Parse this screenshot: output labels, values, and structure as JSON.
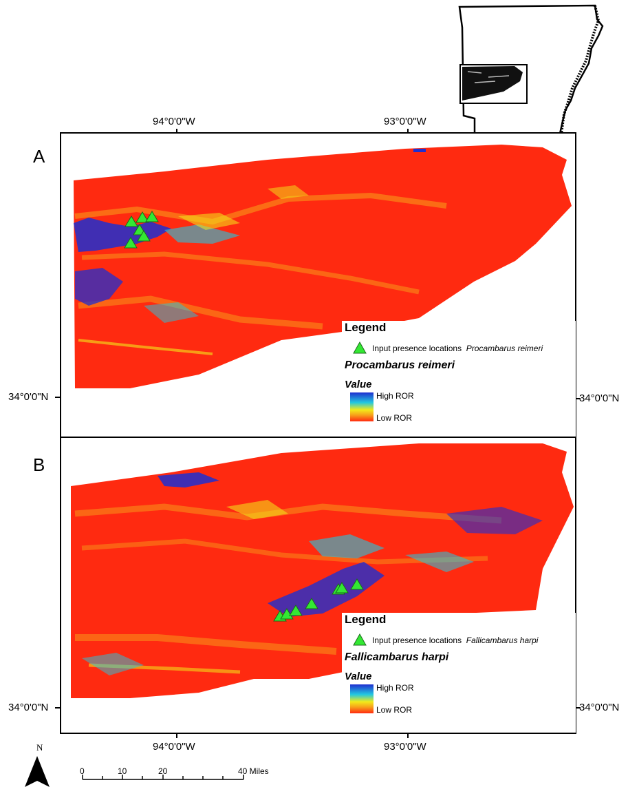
{
  "panels": [
    {
      "letter": "A",
      "lon_labels_top": [
        "94°0'0\"W",
        "93°0'0\"W"
      ],
      "lat_label_left": "34°0'0\"N",
      "lat_label_right": "34°0'0\"N",
      "legend": {
        "title": "Legend",
        "presence_label": "Input presence locations",
        "presence_species": "Procambarus reimeri",
        "species_heading": "Procambarus reimeri",
        "value_heading": "Value",
        "high_label": "High ROR",
        "low_label": "Low ROR"
      }
    },
    {
      "letter": "B",
      "lon_labels_bottom": [
        "94°0'0\"W",
        "93°0'0\"W"
      ],
      "lat_label_left": "34°0'0\"N",
      "lat_label_right": "34°0'0\"N",
      "legend": {
        "title": "Legend",
        "presence_label": "Input presence locations",
        "presence_species": "Fallicambarus harpi",
        "species_heading": "Fallicambarus harpi",
        "value_heading": "Value",
        "high_label": "High ROR",
        "low_label": "Low ROR"
      }
    }
  ],
  "north_arrow": {
    "label": "N"
  },
  "scale_bar": {
    "ticks": [
      "0",
      "10",
      "20",
      "40 Miles"
    ]
  },
  "colors": {
    "high": "#1f2fd0",
    "mid_cyan": "#22c8e0",
    "mid_yellow": "#f2ea1a",
    "mid_orange": "#f7a21a",
    "low": "#ff2a10",
    "presence_marker": "#33e833"
  }
}
